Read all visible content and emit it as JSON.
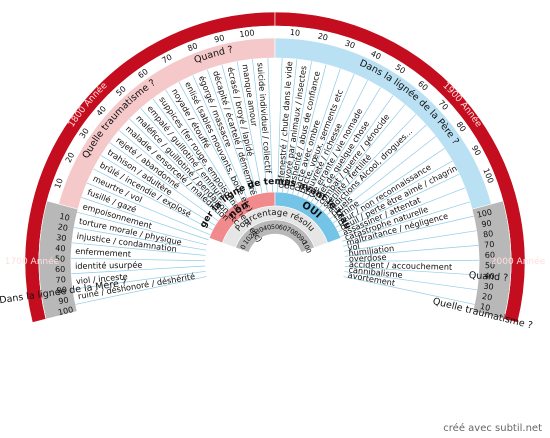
{
  "wheel": {
    "left_items": [
      "ruiné / déshonoré / déshérité",
      "viol / inceste",
      "identité usurpée",
      "enfermement",
      "injustice / condamnation",
      "torture morale / physique",
      "empoisonnement",
      "fusillé / gazé",
      "meurtre / vol",
      "brûlé / incendie / explosé",
      "trahison / adultère",
      "rejeté / abandonné",
      "maladie / ensorcelé / malédiction",
      "maléfice / guillotiné / pendaison etc",
      "empalé / guillotiné / emmuré",
      "suppices (fer rouge, empoisonnement etc)",
      "noyade / étouffé",
      "enlisé (sables mouvants, boue etc)",
      "égorgé / massacre",
      "décapité / écartelé / démembré",
      "écrasé / broyé / lapidé",
      "manque amour",
      "suicide individuel / collectif"
    ],
    "right_items": [
      "défenestré / chute dans le vide",
      "dévoré par animaux / insectes",
      "déshérité / abus de confiance",
      "pacte avec ombre",
      "pacte, vœux, serments etc",
      "pauvreté / richesse",
      "vie errante / vie nomade",
      "rejet de quelque chose",
      "combat / guerre / génocide",
      "stérilité / fertilité",
      "addictions  Alcool, drogues...",
      "rituels",
      "famine",
      "peur / non reconnaissance",
      "deuil / perte être aimé / chagrin",
      "assassiner / attentat",
      "catastrophe naturelle",
      "maltraitance / négligence",
      "vol",
      "humiliation",
      "overdose",
      "accident / accouchement",
      "cannibalisme",
      "avortement"
    ],
    "years": {
      "y1700": "1700 Année",
      "y1800": "1800 Année",
      "y1900": "1900 Année",
      "y2000": "2000 Année"
    },
    "scale_left": [
      "10",
      "20",
      "30",
      "40",
      "50",
      "60",
      "70",
      "80",
      "90",
      "100"
    ],
    "scale_right": [
      "100",
      "90",
      "80",
      "70",
      "60",
      "50",
      "40",
      "30",
      "20",
      "10"
    ],
    "scale_top_left": [
      "10",
      "20",
      "30",
      "40",
      "50",
      "60",
      "70",
      "80",
      "90",
      "100"
    ],
    "scale_top_right": [
      "10",
      "20",
      "30",
      "40",
      "50",
      "60",
      "70",
      "80",
      "90",
      "100"
    ],
    "lineage_mother": "Dans la lignée de la Mère ?",
    "lineage_father": "Dans la lignée de la Père ?",
    "which_trauma_left": "Quelle traumatisme ?",
    "which_trauma_right": "Quelle traumatisme ?",
    "when_left": "Quand ?",
    "when_right": "Quand ?",
    "change_line": "Changer la ligne de temps avant le trauma ?",
    "non": "non",
    "oui": "OUI",
    "percent_solved": "Pourcentage résolu",
    "percent_ticks": [
      "0",
      "10",
      "20",
      "30",
      "40",
      "50",
      "60",
      "70",
      "80",
      "90",
      "100"
    ],
    "colors": {
      "dark_red": "#c40d1e",
      "pink": "#f08a8c",
      "light_pink": "#f5c9ca",
      "blue": "#74c4e8",
      "light_blue": "#b9e1f3",
      "grey": "#b8b8b8",
      "line": "#8fcbe6"
    }
  },
  "credit": "créé avec subtil.net"
}
